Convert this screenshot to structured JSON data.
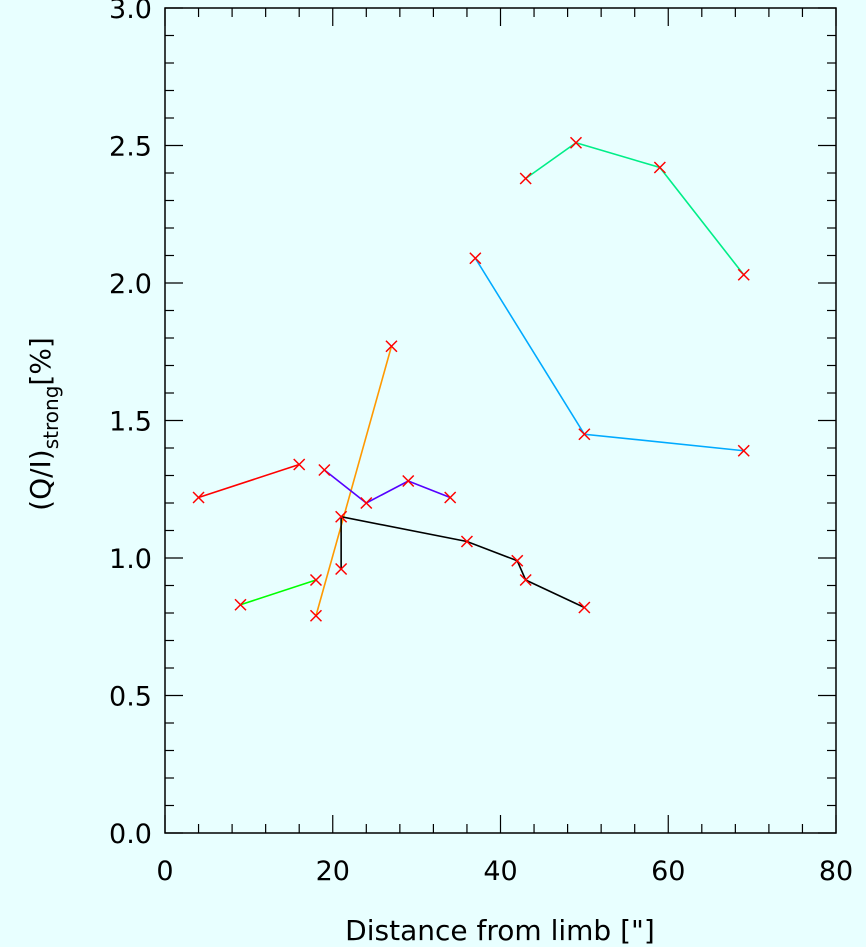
{
  "chart_data": {
    "type": "line",
    "xlabel": "Distance from limb [\"]",
    "ylabel_main": "(Q/I)",
    "ylabel_sub": "strong",
    "ylabel_unit": "[%]",
    "xlim": [
      0,
      80
    ],
    "ylim": [
      0,
      3
    ],
    "x_ticks": [
      "0",
      "20",
      "40",
      "60",
      "80"
    ],
    "y_ticks": [
      "0.0",
      "0.5",
      "1.0",
      "1.5",
      "2.0",
      "2.5",
      "3.0"
    ],
    "grid": false,
    "background": "#e8ffff",
    "marker": "x",
    "marker_color": "#ff0000",
    "series": [
      {
        "color": "#ff0000",
        "x": [
          4,
          16
        ],
        "y": [
          1.22,
          1.34
        ]
      },
      {
        "color": "#00ff00",
        "x": [
          9,
          18
        ],
        "y": [
          0.83,
          0.92
        ]
      },
      {
        "color": "#ff9900",
        "x": [
          18,
          27
        ],
        "y": [
          0.79,
          1.77
        ]
      },
      {
        "color": "#5500ff",
        "x": [
          19,
          24,
          29,
          34
        ],
        "y": [
          1.32,
          1.2,
          1.28,
          1.22
        ]
      },
      {
        "color": "#000000",
        "x": [
          21,
          21,
          36,
          42,
          43,
          50
        ],
        "y": [
          0.96,
          1.15,
          1.06,
          0.99,
          0.92,
          0.82
        ]
      },
      {
        "color": "#00aaff",
        "x": [
          37,
          50,
          69
        ],
        "y": [
          2.09,
          1.45,
          1.39
        ]
      },
      {
        "color": "#00ee88",
        "x": [
          43,
          49,
          59,
          69
        ],
        "y": [
          2.38,
          2.51,
          2.42,
          2.03
        ]
      }
    ]
  }
}
